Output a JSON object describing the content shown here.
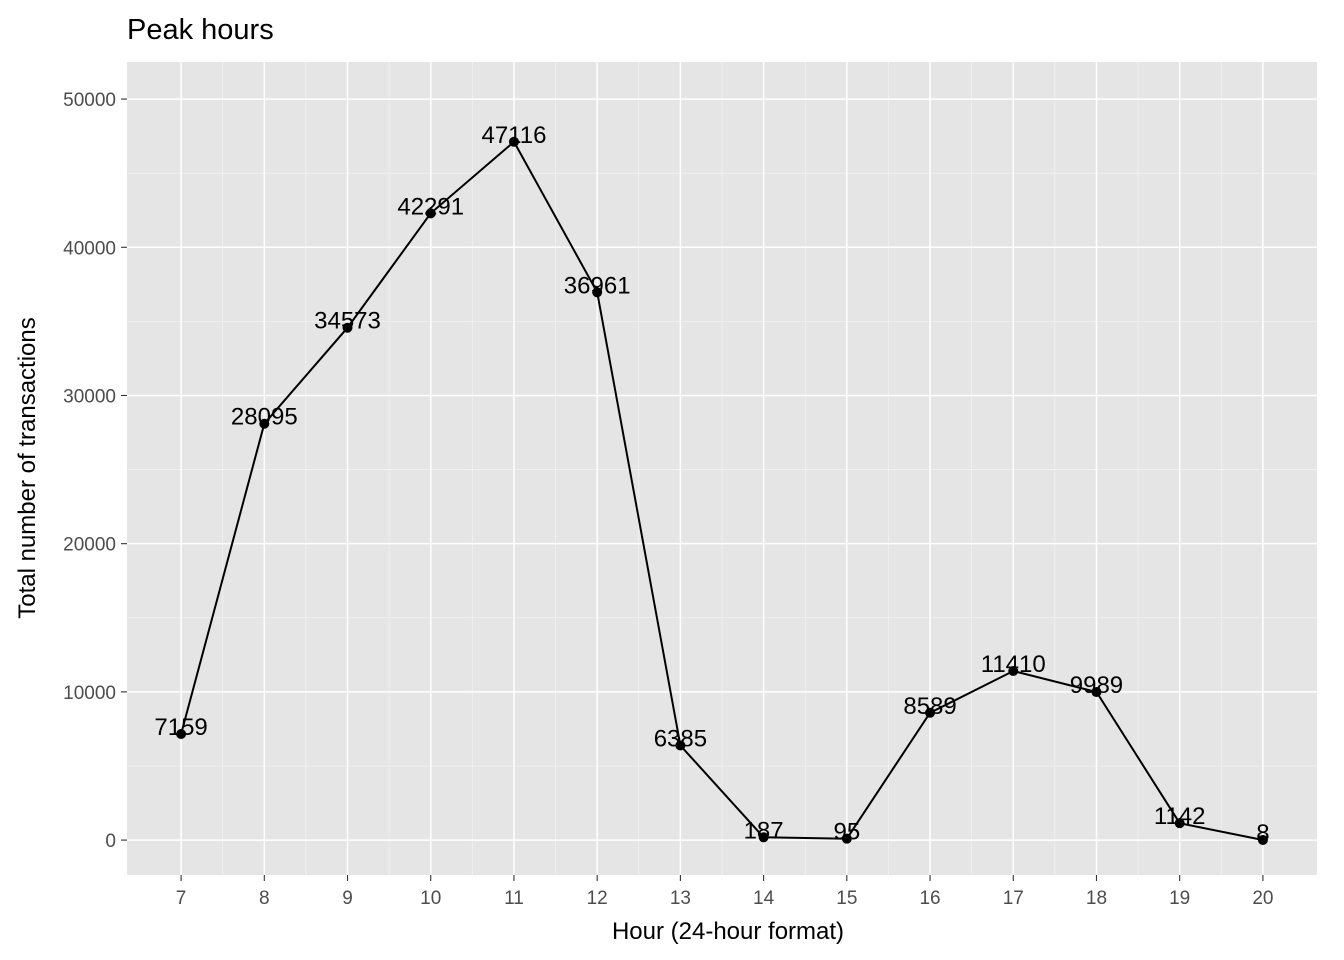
{
  "chart_data": {
    "type": "line",
    "title": "Peak hours",
    "xlabel": "Hour (24-hour format)",
    "ylabel": "Total number of transactions",
    "x": [
      7,
      8,
      9,
      10,
      11,
      12,
      13,
      14,
      15,
      16,
      17,
      18,
      19,
      20
    ],
    "values": [
      7159,
      28095,
      34573,
      42291,
      47116,
      36961,
      6385,
      187,
      95,
      8589,
      11410,
      9989,
      1142,
      8
    ],
    "data_labels": [
      "7159",
      "28095",
      "34573",
      "42291",
      "47116",
      "36961",
      "6385",
      "187",
      "95",
      "8589",
      "11410",
      "9989",
      "1142",
      "8"
    ],
    "x_ticks": [
      "7",
      "8",
      "9",
      "10",
      "11",
      "12",
      "13",
      "14",
      "15",
      "16",
      "17",
      "18",
      "19",
      "20"
    ],
    "y_ticks": [
      0,
      10000,
      20000,
      30000,
      40000,
      50000
    ],
    "y_tick_labels": [
      "0",
      "10000",
      "20000",
      "30000",
      "40000",
      "50000"
    ],
    "xlim": [
      6.35,
      20.65
    ],
    "ylim": [
      -2356,
      52501
    ],
    "grid": true,
    "legend": "none",
    "colors": {
      "panel": "#e5e5e5",
      "grid": "#ffffff",
      "line": "#000000"
    }
  }
}
